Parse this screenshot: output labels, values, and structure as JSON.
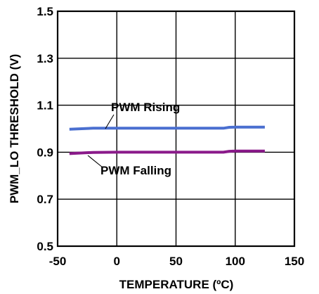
{
  "chart_data": {
    "type": "line",
    "title": "",
    "xlabel": "TEMPERATURE (ºC)",
    "ylabel": "PWM_LO THRESHOLD (V)",
    "xlim": [
      -50,
      150
    ],
    "ylim": [
      0.5,
      1.5
    ],
    "xticks": [
      -50,
      0,
      50,
      100,
      150
    ],
    "yticks": [
      0.5,
      0.7,
      0.9,
      1.1,
      1.3,
      1.5
    ],
    "xtick_labels": [
      "-50",
      "0",
      "50",
      "100",
      "150"
    ],
    "ytick_labels": [
      "0.5",
      "0.7",
      "0.9",
      "1.1",
      "1.3",
      "1.5"
    ],
    "grid": true,
    "series": [
      {
        "name": "PWM Rising",
        "color": "#4a6fd0",
        "x": [
          -40,
          -20,
          0,
          25,
          50,
          75,
          90,
          95,
          100,
          110,
          125
        ],
        "y": [
          0.998,
          1.002,
          1.002,
          1.002,
          1.002,
          1.002,
          1.002,
          1.006,
          1.007,
          1.007,
          1.007
        ]
      },
      {
        "name": "PWM Falling",
        "color": "#8a1a8a",
        "x": [
          -40,
          -20,
          0,
          25,
          50,
          75,
          90,
          95,
          100,
          110,
          125
        ],
        "y": [
          0.894,
          0.899,
          0.9,
          0.9,
          0.9,
          0.9,
          0.9,
          0.904,
          0.905,
          0.905,
          0.905
        ]
      }
    ],
    "annotations": [
      {
        "text": "PWM Rising",
        "series": "PWM Rising"
      },
      {
        "text": "PWM Falling",
        "series": "PWM Falling"
      }
    ]
  }
}
